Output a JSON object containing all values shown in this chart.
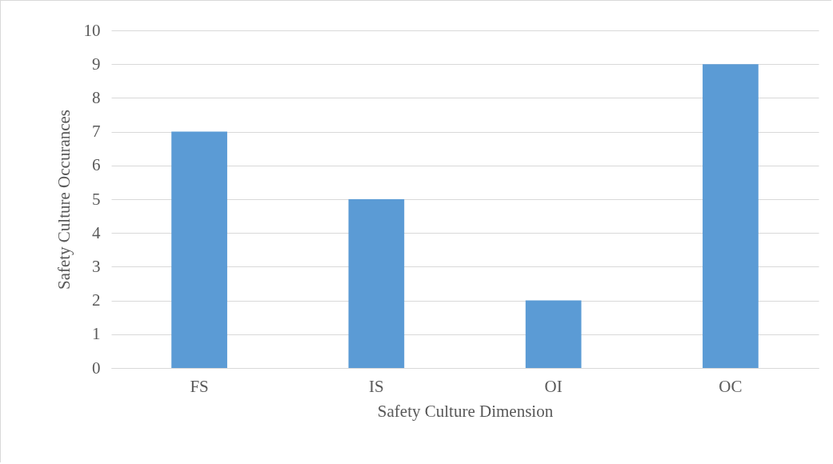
{
  "chart_data": {
    "type": "bar",
    "xlabel": "Safety Culture Dimension",
    "ylabel": "Safety Culture Occurances",
    "categories": [
      "FS",
      "IS",
      "OI",
      "OC"
    ],
    "values": [
      7,
      5,
      2,
      9
    ],
    "color": "#5b9bd5",
    "ylim": [
      0,
      10
    ],
    "yticks": [
      0,
      1,
      2,
      3,
      4,
      5,
      6,
      7,
      8,
      9,
      10
    ],
    "grid": "y"
  }
}
